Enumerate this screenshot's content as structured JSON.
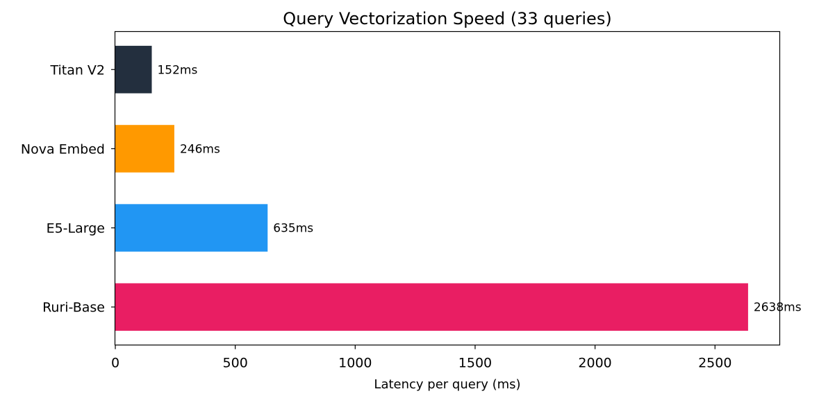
{
  "chart_data": {
    "type": "bar",
    "orientation": "horizontal",
    "title": "Query Vectorization Speed (33 queries)",
    "xlabel": "Latency per query (ms)",
    "ylabel": "",
    "categories": [
      "Titan V2",
      "Nova Embed",
      "E5-Large",
      "Ruri-Base"
    ],
    "values": [
      152,
      246,
      635,
      2638
    ],
    "data_labels": [
      "152ms",
      "246ms",
      "635ms",
      "2638ms"
    ],
    "colors": [
      "#232F3E",
      "#FF9900",
      "#2196F3",
      "#E91E63"
    ],
    "xlim": [
      0,
      2770
    ],
    "xticks": [
      0,
      500,
      1000,
      1500,
      2000,
      2500
    ],
    "xtick_labels": [
      "0",
      "500",
      "1000",
      "1500",
      "2000",
      "2500"
    ],
    "grid": false,
    "legend": "none"
  }
}
